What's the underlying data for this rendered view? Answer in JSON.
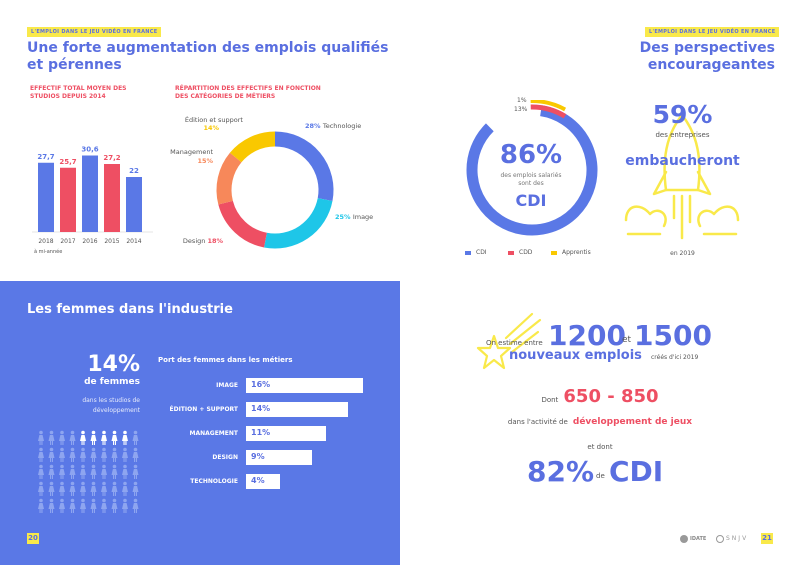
{
  "left_page": {
    "tag": "L'EMPLOI DANS LE JEU VIDÉO EN FRANCE",
    "title_line1": "Une forte augmentation des emplois qualifiés",
    "title_line2": "et pérennes",
    "bar_section_title_line1": "EFFECTIF TOTAL MOYEN DES",
    "bar_section_title_line2": "STUDIOS DEPUIS 2014",
    "donut_section_title_line1": "RÉPARTITION DES EFFECTIFS EN FONCTION",
    "donut_section_title_line2": "DES CATÉGORIES DE MÉTIERS",
    "bar_footnote": "à mi-année",
    "women": {
      "title": "Les femmes dans l'industrie",
      "pct": "14%",
      "pct_label": "de femmes",
      "desc_line1": "dans les studios de",
      "desc_line2": "développement",
      "bars_title": "Port des femmes dans les métiers"
    },
    "page_number": "20"
  },
  "right_page": {
    "tag": "L'EMPLOI DANS LE JEU VIDÉO EN FRANCE",
    "title": "Des perspectives encourageantes",
    "ring_big": "86%",
    "ring_desc_line1": "des emplois salariés",
    "ring_desc_line2": "sont des",
    "ring_cdi": "CDI",
    "ring_small_1": "1%",
    "ring_small_2": "13%",
    "legend": [
      "CDI",
      "CDD",
      "Apprentis"
    ],
    "hire_pct": "59%",
    "hire_line1": "des entreprises",
    "hire_word": "embaucheront",
    "hire_year": "en 2019",
    "estimate_prefix": "On estime entre",
    "estimate_low": "1200",
    "estimate_and": "et",
    "estimate_high": "1500",
    "estimate_new_jobs": "nouveaux emplois",
    "estimate_suffix": "créés d'ici 2019",
    "dev_prefix": "Dont",
    "dev_range": "650 - 850",
    "dev_line2_prefix": "dans l'activité de",
    "dev_line2_activity": "développement de jeux",
    "cdi_and": "et dont",
    "cdi_pct": "82%",
    "cdi_de": "de",
    "cdi_word": "CDI",
    "logo1": "IDATE",
    "logo2": "SNJV",
    "page_number": "21"
  },
  "colors": {
    "blue": "#5a78e6",
    "red": "#ee4f63",
    "yellow": "#f9c800",
    "orange": "#f7885a",
    "cyan": "#1ec6e8"
  },
  "chart_data": [
    {
      "type": "bar",
      "categories": [
        "2018",
        "2017",
        "2016",
        "2015",
        "2014"
      ],
      "values": [
        27.7,
        25.7,
        30.6,
        27.2,
        22
      ],
      "value_labels": [
        "27,7",
        "25,7",
        "30,6",
        "27,2",
        "22"
      ],
      "colors": [
        "#5a78e6",
        "#ee4f63",
        "#5a78e6",
        "#ee4f63",
        "#5a78e6"
      ],
      "ylim": [
        0,
        32
      ]
    },
    {
      "type": "pie",
      "categories": [
        "Technologie",
        "Image",
        "Design",
        "Management",
        "Édition et support"
      ],
      "values": [
        28,
        25,
        18,
        15,
        14
      ],
      "value_labels": [
        "28%",
        "25%",
        "18%",
        "15%",
        "14%"
      ],
      "colors": [
        "#5a78e6",
        "#1ec6e8",
        "#ee4f63",
        "#f7885a",
        "#f9c800"
      ]
    },
    {
      "type": "bar",
      "orientation": "horizontal",
      "categories": [
        "IMAGE",
        "ÉDITION + SUPPORT",
        "MANAGEMENT",
        "DESIGN",
        "TECHNOLOGIE"
      ],
      "values": [
        16,
        14,
        11,
        9,
        4
      ],
      "value_labels": [
        "16%",
        "14%",
        "11%",
        "9%",
        "4%"
      ],
      "xlim": [
        0,
        16
      ]
    },
    {
      "type": "pie",
      "categories": [
        "CDI",
        "CDD",
        "Apprentis"
      ],
      "values": [
        86,
        13,
        1
      ],
      "value_labels": [
        "86%",
        "13%",
        "1%"
      ],
      "colors": [
        "#5a78e6",
        "#ee4f63",
        "#f9c800"
      ]
    }
  ]
}
